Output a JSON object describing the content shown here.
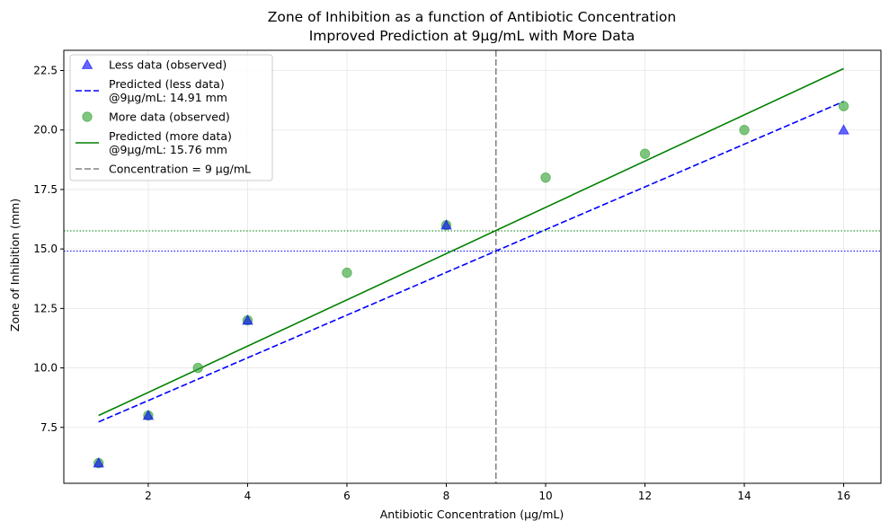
{
  "chart_data": {
    "type": "scatter",
    "title": "Zone of Inhibition as a function of Antibiotic Concentration",
    "subtitle": "Improved Prediction at 9µg/mL with More Data",
    "xlabel": "Antibiotic Concentration (µg/mL)",
    "ylabel": "Zone of Inhibition (mm)",
    "xlim": [
      0.3,
      16.75
    ],
    "ylim": [
      5.15,
      23.35
    ],
    "x_ticks": [
      2,
      4,
      6,
      8,
      10,
      12,
      14,
      16
    ],
    "y_ticks": [
      7.5,
      10.0,
      12.5,
      15.0,
      17.5,
      20.0,
      22.5
    ],
    "x_tick_labels": [
      "2",
      "4",
      "6",
      "8",
      "10",
      "12",
      "14",
      "16"
    ],
    "y_tick_labels": [
      "7.5",
      "10.0",
      "12.5",
      "15.0",
      "17.5",
      "20.0",
      "22.5"
    ],
    "grid": true,
    "legend_position": "top-left",
    "series": [
      {
        "kind": "scatter",
        "marker": "triangle",
        "color": "#0000ff",
        "legend": "Less data (observed)",
        "x": [
          1,
          2,
          4,
          8,
          16
        ],
        "y": [
          6,
          8,
          12,
          16,
          20
        ]
      },
      {
        "kind": "line",
        "style": "dashed",
        "color": "#0000ff",
        "legend_lines": [
          "Predicted (less data)",
          "@9µg/mL: 14.91 mm"
        ],
        "x": [
          1,
          16
        ],
        "y": [
          7.73,
          21.2
        ]
      },
      {
        "kind": "scatter",
        "marker": "circle",
        "color": "#2ca02c",
        "legend": "More data (observed)",
        "x": [
          1,
          2,
          3,
          4,
          6,
          8,
          10,
          12,
          14,
          16
        ],
        "y": [
          6,
          8,
          10,
          12,
          14,
          16,
          18,
          19,
          20,
          21
        ]
      },
      {
        "kind": "line",
        "style": "solid",
        "color": "#008000",
        "legend_lines": [
          "Predicted (more data)",
          "@9µg/mL: 15.76 mm"
        ],
        "x": [
          1,
          16
        ],
        "y": [
          8.0,
          22.58
        ]
      }
    ],
    "reference_lines": [
      {
        "orientation": "vertical",
        "value": 9,
        "style": "dashed",
        "color": "#808080",
        "legend": "Concentration = 9 µg/mL"
      },
      {
        "orientation": "horizontal",
        "value": 14.91,
        "style": "dotted",
        "color": "#0000ff"
      },
      {
        "orientation": "horizontal",
        "value": 15.76,
        "style": "dotted",
        "color": "#008000"
      }
    ]
  }
}
